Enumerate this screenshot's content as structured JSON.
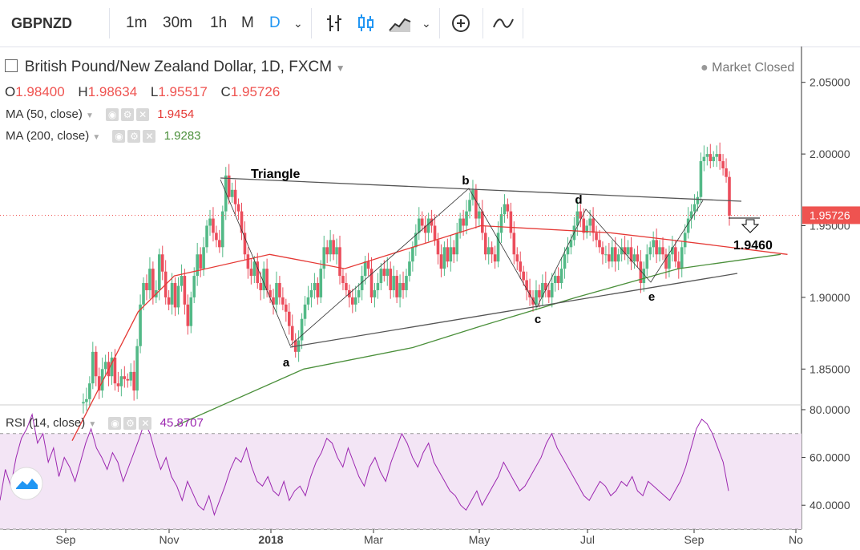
{
  "toolbar": {
    "symbol": "GBPNZD",
    "intervals": [
      "1m",
      "30m",
      "1h",
      "M",
      "D"
    ],
    "active_interval": "D",
    "icons": [
      "chevron-down-icon",
      "bar-chart-icon",
      "candlestick-icon",
      "area-chart-icon",
      "chevron-down-icon",
      "plus-circle-icon",
      "indicator-wave-icon"
    ]
  },
  "legend": {
    "title": "British Pound/New Zealand Dollar, 1D, FXCM",
    "status": "Market Closed",
    "o_label": "O",
    "o": "1.98400",
    "h_label": "H",
    "h": "1.98634",
    "l_label": "L",
    "l": "1.95517",
    "c_label": "C",
    "c": "1.95726",
    "ma50_label": "MA (50, close)",
    "ma50_value": "1.9454",
    "ma200_label": "MA (200, close)",
    "ma200_value": "1.9283",
    "rsi_label": "RSI (14, close)",
    "rsi_value": "45.8707"
  },
  "colors": {
    "up": "#53b987",
    "down": "#eb4d5c",
    "ma50": "#e53935",
    "ma200": "#4a8f3a",
    "rsi": "#9c27b0",
    "rsi_band": "#f3e5f5",
    "price_label": "#ef5350"
  },
  "chart_data": {
    "type": "candlestick",
    "price_axis": {
      "ticks": [
        2.05,
        2.0,
        1.95,
        1.9,
        1.85
      ],
      "tick_labels": [
        "2.05000",
        "2.00000",
        "1.95000",
        "1.90000",
        "1.85000"
      ],
      "range": [
        1.825,
        2.075
      ]
    },
    "last_price": "1.95726",
    "rsi_axis": {
      "ticks": [
        80,
        60,
        40
      ],
      "tick_labels": [
        "80.0000",
        "60.0000",
        "40.0000"
      ],
      "range": [
        30,
        82
      ],
      "band": [
        30,
        70
      ]
    },
    "time_axis": {
      "labels": [
        "Sep",
        "Nov",
        "2018",
        "Mar",
        "May",
        "Jul",
        "Sep",
        "No"
      ]
    },
    "annotations": {
      "pattern_name": "Triangle",
      "wave_labels": [
        "a",
        "b",
        "c",
        "d",
        "e"
      ],
      "target": "1.9460"
    },
    "closes": [
      1.826,
      1.827,
      1.829,
      1.84,
      1.862,
      1.845,
      1.835,
      1.85,
      1.855,
      1.845,
      1.858,
      1.84,
      1.838,
      1.845,
      1.843,
      1.842,
      1.848,
      1.835,
      1.866,
      1.895,
      1.91,
      1.905,
      1.92,
      1.9,
      1.905,
      1.93,
      1.918,
      1.9,
      1.895,
      1.91,
      1.893,
      1.908,
      1.915,
      1.895,
      1.88,
      1.9,
      1.915,
      1.93,
      1.92,
      1.935,
      1.95,
      1.955,
      1.945,
      1.94,
      1.935,
      1.96,
      1.985,
      1.97,
      1.975,
      1.965,
      1.96,
      1.945,
      1.93,
      1.92,
      1.915,
      1.925,
      1.91,
      1.905,
      1.92,
      1.905,
      1.9,
      1.895,
      1.91,
      1.9,
      1.895,
      1.89,
      1.88,
      1.87,
      1.862,
      1.87,
      1.885,
      1.895,
      1.9,
      1.905,
      1.91,
      1.9,
      1.92,
      1.935,
      1.93,
      1.94,
      1.93,
      1.935,
      1.915,
      1.91,
      1.905,
      1.9,
      1.895,
      1.9,
      1.905,
      1.915,
      1.925,
      1.92,
      1.9,
      1.905,
      1.91,
      1.92,
      1.915,
      1.92,
      1.905,
      1.915,
      1.9,
      1.91,
      1.905,
      1.915,
      1.925,
      1.935,
      1.945,
      1.955,
      1.95,
      1.945,
      1.955,
      1.95,
      1.94,
      1.93,
      1.92,
      1.935,
      1.925,
      1.935,
      1.93,
      1.945,
      1.955,
      1.95,
      1.96,
      1.968,
      1.975,
      1.955,
      1.96,
      1.945,
      1.93,
      1.935,
      1.93,
      1.925,
      1.945,
      1.958,
      1.965,
      1.96,
      1.945,
      1.93,
      1.925,
      1.918,
      1.912,
      1.905,
      1.9,
      1.895,
      1.905,
      1.9,
      1.91,
      1.905,
      1.9,
      1.91,
      1.915,
      1.91,
      1.92,
      1.93,
      1.935,
      1.94,
      1.95,
      1.96,
      1.955,
      1.945,
      1.95,
      1.955,
      1.945,
      1.94,
      1.935,
      1.93,
      1.93,
      1.925,
      1.935,
      1.925,
      1.93,
      1.935,
      1.93,
      1.935,
      1.925,
      1.93,
      1.925,
      1.91,
      1.92,
      1.93,
      1.935,
      1.94,
      1.93,
      1.935,
      1.93,
      1.92,
      1.93,
      1.935,
      1.925,
      1.92,
      1.935,
      1.945,
      1.955,
      1.96,
      1.965,
      1.97,
      1.995,
      1.998,
      2.0,
      1.995,
      1.998,
      2.0,
      1.995,
      1.99,
      1.984,
      1.957
    ],
    "ma50": [
      [
        1.8,
        0
      ],
      [
        1.89,
        0.97
      ],
      [
        1.915,
        1.5
      ],
      [
        1.93,
        2.9
      ],
      [
        1.92,
        4.0
      ],
      [
        1.95,
        6.0
      ],
      [
        1.945,
        7.9
      ],
      [
        1.94,
        8.8
      ],
      [
        1.93,
        10.5
      ]
    ],
    "ma200": [
      [
        1.81,
        1.5
      ],
      [
        1.85,
        3.4
      ],
      [
        1.865,
        5.0
      ],
      [
        1.88,
        6.0
      ],
      [
        1.9,
        7.4
      ],
      [
        1.92,
        8.9
      ],
      [
        1.93,
        10.4
      ]
    ],
    "rsi": [
      42,
      55,
      48,
      60,
      68,
      72,
      78,
      66,
      70,
      58,
      64,
      52,
      60,
      56,
      50,
      58,
      66,
      72,
      64,
      60,
      55,
      62,
      58,
      50,
      56,
      62,
      68,
      75,
      70,
      62,
      55,
      60,
      52,
      48,
      42,
      50,
      45,
      40,
      38,
      44,
      36,
      42,
      48,
      55,
      60,
      58,
      64,
      56,
      50,
      48,
      52,
      46,
      44,
      50,
      42,
      46,
      48,
      44,
      52,
      58,
      62,
      68,
      66,
      60,
      56,
      64,
      58,
      52,
      48,
      56,
      60,
      54,
      50,
      58,
      64,
      70,
      66,
      60,
      56,
      62,
      66,
      58,
      54,
      50,
      46,
      44,
      40,
      38,
      42,
      46,
      40,
      44,
      48,
      52,
      58,
      54,
      50,
      46,
      48,
      52,
      56,
      60,
      66,
      70,
      64,
      60,
      56,
      52,
      48,
      44,
      42,
      46,
      50,
      48,
      44,
      46,
      50,
      48,
      52,
      46,
      44,
      50,
      48,
      46,
      44,
      42,
      46,
      50,
      56,
      64,
      72,
      76,
      74,
      70,
      64,
      58,
      46
    ]
  }
}
